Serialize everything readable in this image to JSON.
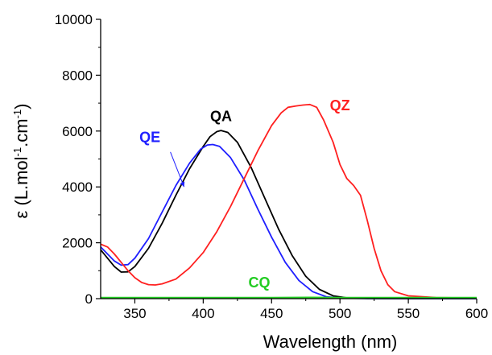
{
  "chart_data": {
    "type": "line",
    "title": "",
    "xlabel": "Wavelength (nm)",
    "ylabel": {
      "prefix": "ε (L.mol",
      "exp1": "-1",
      "middle": ".cm",
      "exp2": "-1",
      "suffix": ")"
    },
    "xlim": [
      325,
      600
    ],
    "ylim": [
      0,
      10000
    ],
    "x_ticks": [
      350,
      400,
      450,
      500,
      550,
      600
    ],
    "y_ticks": [
      0,
      2000,
      4000,
      6000,
      8000,
      10000
    ],
    "x_tick_labels": [
      "350",
      "400",
      "450",
      "500",
      "550",
      "600"
    ],
    "y_tick_labels": [
      "0",
      "2000",
      "4000",
      "6000",
      "8000",
      "10000"
    ],
    "grid": false,
    "legend": "none",
    "series": [
      {
        "name": "QA",
        "color": "#000000",
        "points": [
          [
            325,
            1750
          ],
          [
            330,
            1450
          ],
          [
            335,
            1150
          ],
          [
            340,
            950
          ],
          [
            345,
            960
          ],
          [
            350,
            1150
          ],
          [
            360,
            1800
          ],
          [
            370,
            2700
          ],
          [
            380,
            3700
          ],
          [
            390,
            4650
          ],
          [
            400,
            5450
          ],
          [
            405,
            5800
          ],
          [
            410,
            5980
          ],
          [
            413,
            6020
          ],
          [
            418,
            5950
          ],
          [
            425,
            5600
          ],
          [
            435,
            4700
          ],
          [
            445,
            3600
          ],
          [
            455,
            2500
          ],
          [
            465,
            1550
          ],
          [
            475,
            800
          ],
          [
            485,
            330
          ],
          [
            495,
            100
          ],
          [
            505,
            30
          ],
          [
            520,
            10
          ],
          [
            550,
            5
          ],
          [
            600,
            5
          ]
        ]
      },
      {
        "name": "QE",
        "color": "#1f1fff",
        "points": [
          [
            325,
            1850
          ],
          [
            330,
            1600
          ],
          [
            335,
            1350
          ],
          [
            340,
            1200
          ],
          [
            345,
            1220
          ],
          [
            350,
            1450
          ],
          [
            360,
            2150
          ],
          [
            370,
            3100
          ],
          [
            380,
            4050
          ],
          [
            390,
            4850
          ],
          [
            398,
            5350
          ],
          [
            403,
            5500
          ],
          [
            407,
            5520
          ],
          [
            412,
            5450
          ],
          [
            420,
            5050
          ],
          [
            430,
            4250
          ],
          [
            440,
            3200
          ],
          [
            450,
            2200
          ],
          [
            460,
            1300
          ],
          [
            470,
            650
          ],
          [
            480,
            250
          ],
          [
            490,
            70
          ],
          [
            500,
            20
          ],
          [
            520,
            5
          ],
          [
            550,
            3
          ],
          [
            600,
            3
          ]
        ]
      },
      {
        "name": "QZ",
        "color": "#ff2020",
        "points": [
          [
            325,
            1950
          ],
          [
            330,
            1850
          ],
          [
            335,
            1600
          ],
          [
            340,
            1300
          ],
          [
            345,
            1000
          ],
          [
            350,
            750
          ],
          [
            355,
            580
          ],
          [
            360,
            500
          ],
          [
            365,
            490
          ],
          [
            370,
            530
          ],
          [
            380,
            700
          ],
          [
            390,
            1100
          ],
          [
            400,
            1650
          ],
          [
            410,
            2400
          ],
          [
            420,
            3300
          ],
          [
            430,
            4300
          ],
          [
            440,
            5300
          ],
          [
            450,
            6200
          ],
          [
            457,
            6650
          ],
          [
            462,
            6850
          ],
          [
            468,
            6900
          ],
          [
            473,
            6930
          ],
          [
            478,
            6950
          ],
          [
            483,
            6850
          ],
          [
            488,
            6400
          ],
          [
            495,
            5600
          ],
          [
            500,
            4800
          ],
          [
            505,
            4300
          ],
          [
            510,
            4050
          ],
          [
            515,
            3700
          ],
          [
            520,
            2800
          ],
          [
            525,
            1800
          ],
          [
            530,
            1000
          ],
          [
            535,
            500
          ],
          [
            540,
            250
          ],
          [
            550,
            100
          ],
          [
            570,
            40
          ],
          [
            600,
            20
          ]
        ]
      },
      {
        "name": "CQ",
        "color": "#22cc22",
        "points": [
          [
            325,
            30
          ],
          [
            350,
            30
          ],
          [
            400,
            30
          ],
          [
            450,
            30
          ],
          [
            480,
            35
          ],
          [
            500,
            30
          ],
          [
            550,
            25
          ],
          [
            600,
            25
          ]
        ]
      }
    ],
    "annotations": [
      {
        "text": "QA",
        "color": "#000000",
        "x": 413,
        "y": 6350
      },
      {
        "text": "QE",
        "color": "#1f1fff",
        "x": 361,
        "y": 5600
      },
      {
        "text": "QZ",
        "color": "#ff2020",
        "x": 500,
        "y": 6750
      },
      {
        "text": "CQ",
        "color": "#22cc22",
        "x": 441,
        "y": 400
      }
    ],
    "arrow": {
      "color": "#1f1fff",
      "from": [
        376,
        5250
      ],
      "to": [
        386,
        4000
      ]
    }
  }
}
